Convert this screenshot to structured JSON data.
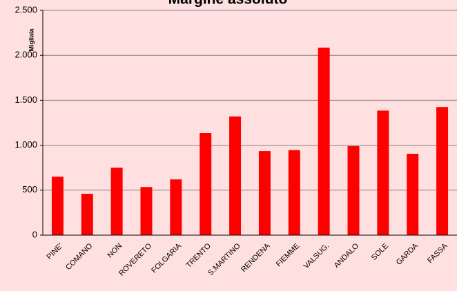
{
  "chart_data": {
    "type": "bar",
    "title": "Margine assoluto",
    "y_label": "Migliaia",
    "categories": [
      "PINE'",
      "COMANO",
      "NON",
      "ROVERETO",
      "FOLGARIA",
      "TRENTO",
      "S.MARTINO",
      "RENDENA",
      "FIEMME",
      "VALSUG.",
      "ANDALO",
      "SOLE",
      "GARDA",
      "FASSA"
    ],
    "values": [
      650,
      460,
      750,
      535,
      620,
      1135,
      1320,
      935,
      945,
      2085,
      990,
      1385,
      905,
      1425
    ],
    "color": "#ff0000",
    "ylim": [
      0,
      2500
    ],
    "yticks": [
      0,
      500,
      {
        "value": 1000,
        "label": "1.000"
      },
      {
        "value": 1500,
        "label": "1.500"
      },
      {
        "value": 2000,
        "label": "2.000"
      },
      {
        "value": 2500,
        "label": "2.500"
      }
    ],
    "grid": true
  }
}
